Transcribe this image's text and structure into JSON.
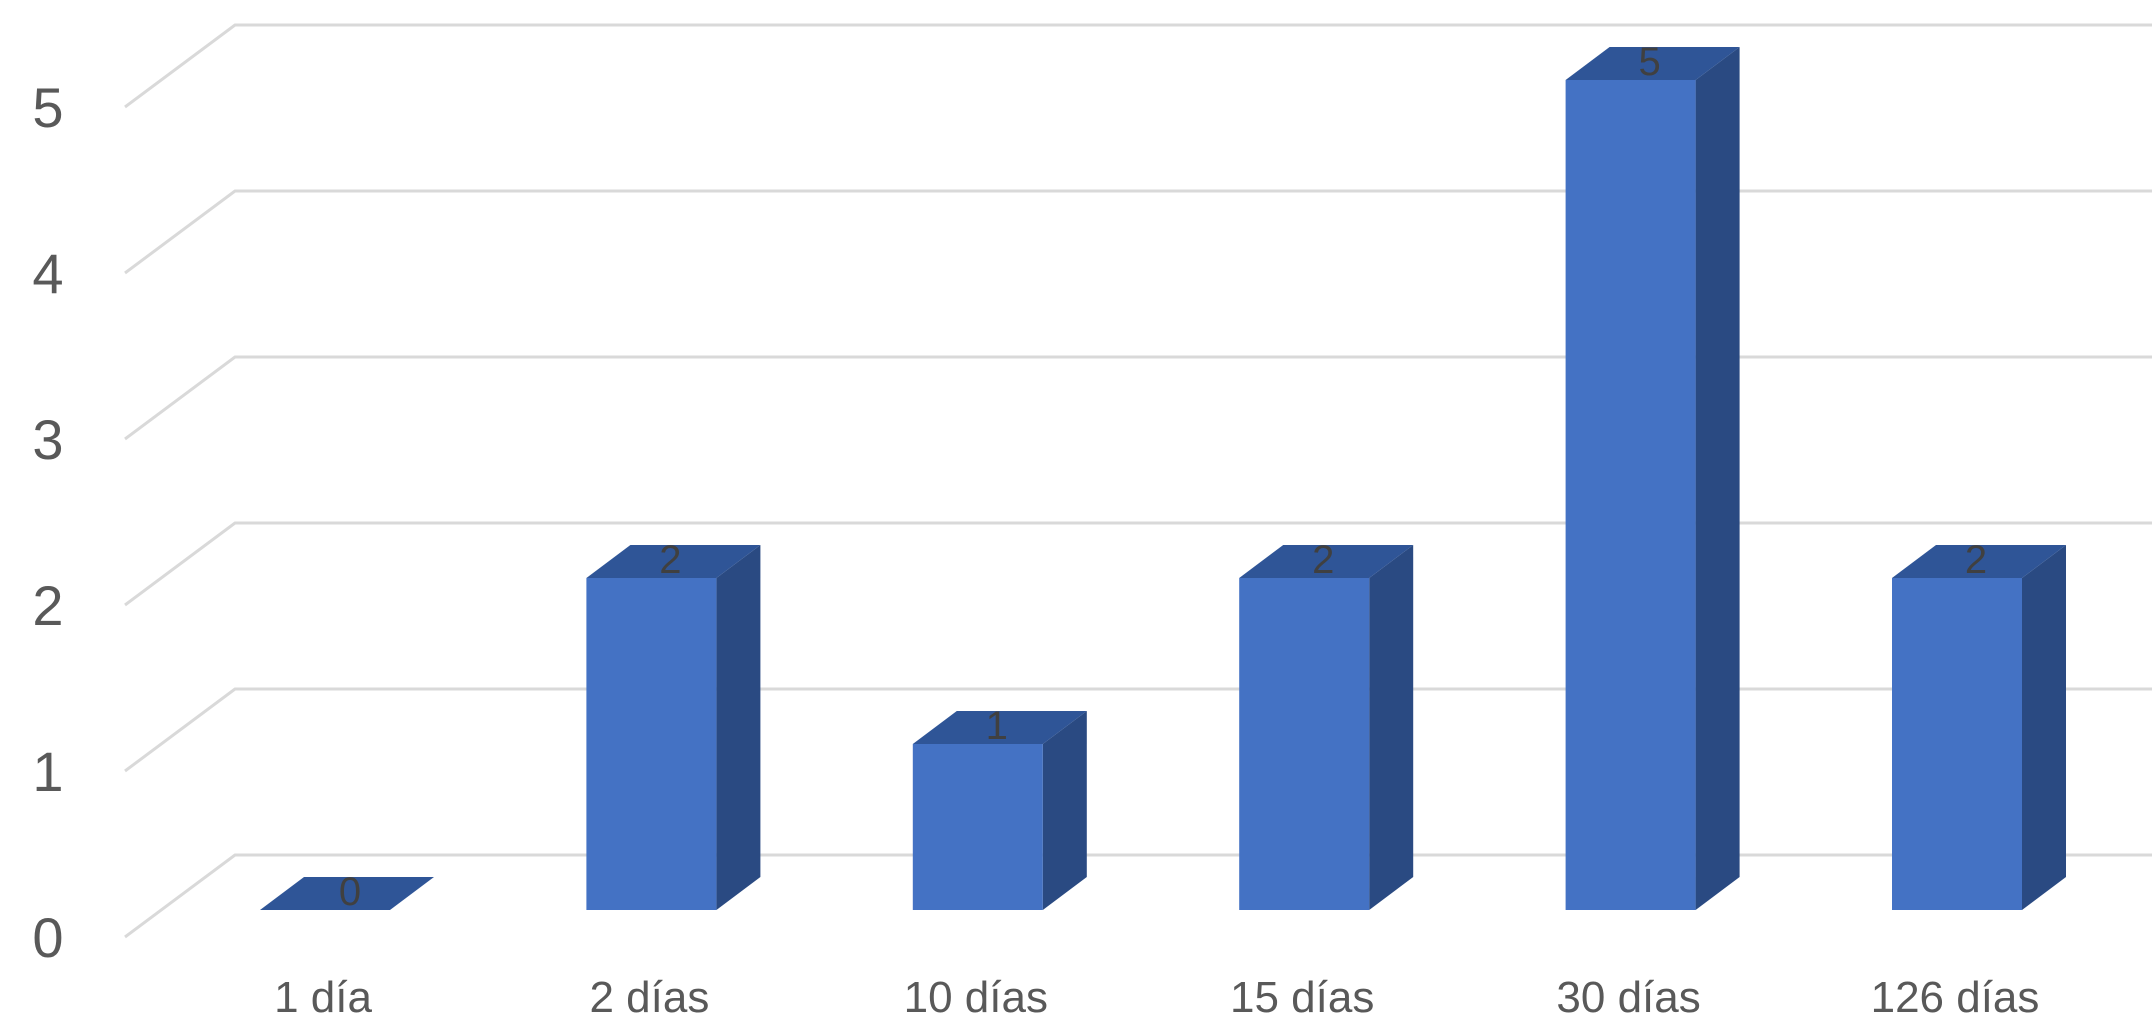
{
  "chart_data": {
    "type": "bar",
    "style": "3d-column",
    "categories": [
      "1 día",
      "2 días",
      "10 días",
      "15 días",
      "30 días",
      "126 días"
    ],
    "values": [
      0,
      2,
      1,
      2,
      5,
      2
    ],
    "data_labels": [
      "0",
      "2",
      "1",
      "2",
      "5",
      "2"
    ],
    "y_ticks": [
      "0",
      "1",
      "2",
      "3",
      "4",
      "5"
    ],
    "ylim": [
      0,
      5
    ],
    "grid": true,
    "legend": "none",
    "title": "",
    "xlabel": "",
    "ylabel": "",
    "colors": {
      "bar_front": "#4472c4",
      "bar_top": "#2f5597",
      "bar_side": "#2a4a82",
      "grid": "#d9d9d9",
      "axis_text": "#595959",
      "data_label": "#404040"
    }
  }
}
